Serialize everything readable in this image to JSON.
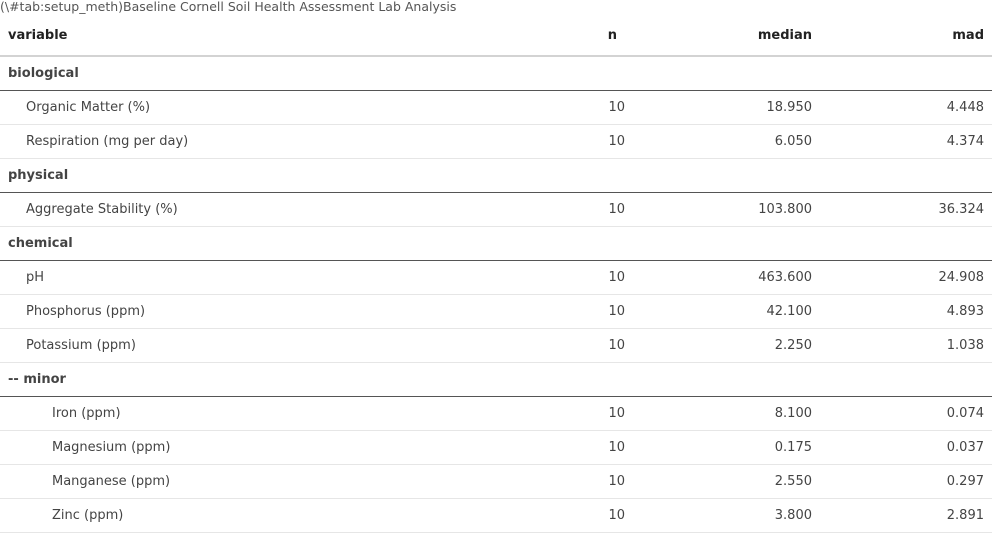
{
  "caption": "(\\#tab:setup_meth)Baseline Cornell Soil Health Assessment Lab Analysis",
  "columns": {
    "variable": "variable",
    "n": "n",
    "median": "median",
    "mad": "mad"
  },
  "groups": [
    {
      "label": "biological",
      "indent": 1,
      "rows": [
        {
          "variable": "Organic Matter (%)",
          "n": "10",
          "median": "18.950",
          "mad": "4.448"
        },
        {
          "variable": "Respiration (mg per day)",
          "n": "10",
          "median": "6.050",
          "mad": "4.374"
        }
      ]
    },
    {
      "label": "physical",
      "indent": 1,
      "rows": [
        {
          "variable": "Aggregate Stability (%)",
          "n": "10",
          "median": "103.800",
          "mad": "36.324"
        }
      ]
    },
    {
      "label": "chemical",
      "indent": 1,
      "rows": [
        {
          "variable": "pH",
          "n": "10",
          "median": "463.600",
          "mad": "24.908"
        },
        {
          "variable": "Phosphorus (ppm)",
          "n": "10",
          "median": "42.100",
          "mad": "4.893"
        },
        {
          "variable": "Potassium (ppm)",
          "n": "10",
          "median": "2.250",
          "mad": "1.038"
        }
      ]
    },
    {
      "label": "-- minor",
      "indent": 2,
      "rows": [
        {
          "variable": "Iron (ppm)",
          "n": "10",
          "median": "8.100",
          "mad": "0.074"
        },
        {
          "variable": "Magnesium (ppm)",
          "n": "10",
          "median": "0.175",
          "mad": "0.037"
        },
        {
          "variable": "Manganese (ppm)",
          "n": "10",
          "median": "2.550",
          "mad": "0.297"
        },
        {
          "variable": "Zinc (ppm)",
          "n": "10",
          "median": "3.800",
          "mad": "2.891"
        }
      ]
    }
  ]
}
